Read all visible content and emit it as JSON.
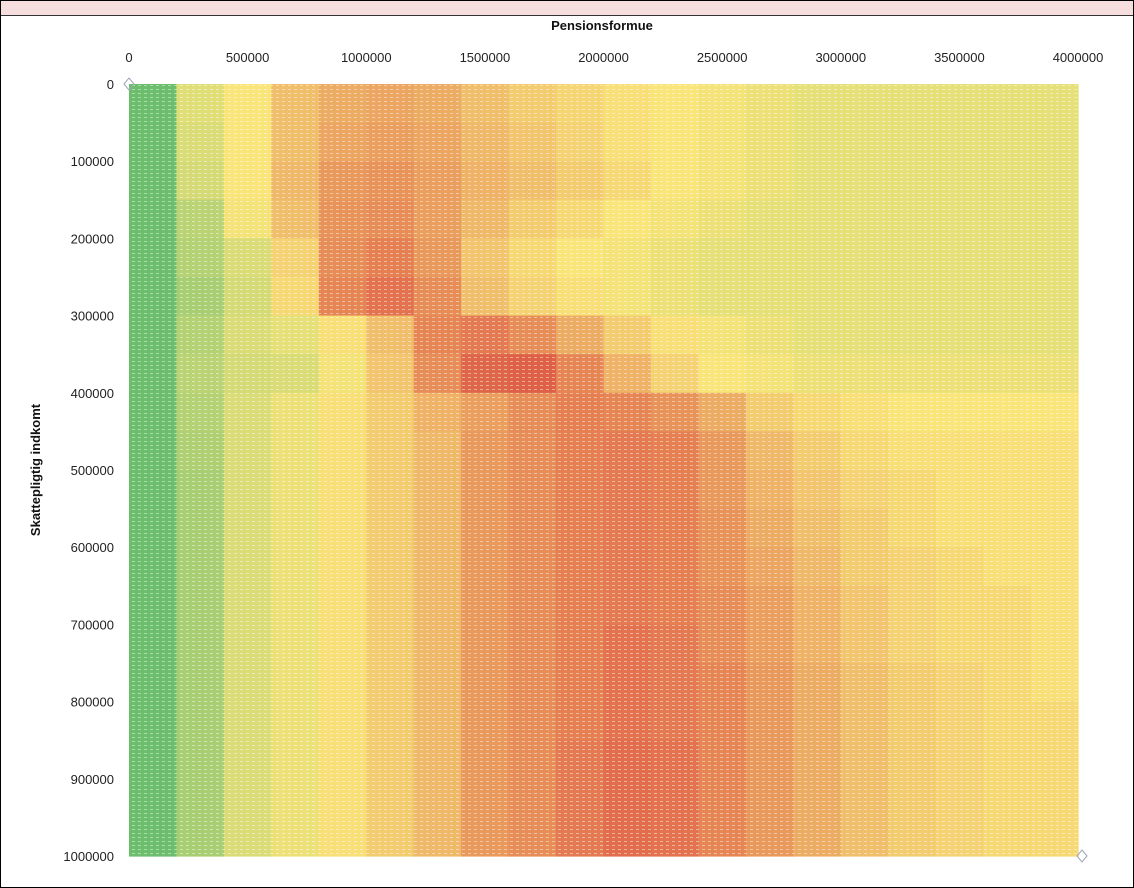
{
  "chart_data": {
    "type": "heatmap",
    "title": "",
    "xlabel": "Pensionsformue",
    "ylabel": "Skattepligtig indkomt",
    "x_axis_position": "top",
    "xlim": [
      0,
      4000000
    ],
    "ylim": [
      0,
      1000000
    ],
    "y_reversed": true,
    "xticks": [
      0,
      500000,
      1000000,
      1500000,
      2000000,
      2500000,
      3000000,
      3500000,
      4000000
    ],
    "xtick_labels": [
      "0",
      "500000",
      "1000000",
      "1500000",
      "2000000",
      "2500000",
      "3000000",
      "3500000",
      "4000000"
    ],
    "yticks": [
      0,
      100000,
      200000,
      300000,
      400000,
      500000,
      600000,
      700000,
      800000,
      900000,
      1000000
    ],
    "ytick_labels": [
      "0",
      "100000",
      "200000",
      "300000",
      "400000",
      "500000",
      "600000",
      "700000",
      "800000",
      "900000",
      "1000000"
    ],
    "color_scale": {
      "low": "#5cb86a",
      "mid": "#f9e57a",
      "high": "#d9473d"
    },
    "grid": false,
    "legend": "none",
    "x": [
      100000,
      300000,
      500000,
      700000,
      900000,
      1100000,
      1300000,
      1500000,
      1700000,
      1900000,
      2100000,
      2300000,
      2500000,
      2700000,
      2900000,
      3100000,
      3300000,
      3500000,
      3700000,
      3900000
    ],
    "y": [
      25000,
      75000,
      125000,
      175000,
      225000,
      275000,
      325000,
      375000,
      425000,
      475000,
      525000,
      575000,
      625000,
      675000,
      725000,
      775000,
      825000,
      875000,
      925000,
      975000
    ],
    "z": [
      [
        0.05,
        0.42,
        0.5,
        0.62,
        0.68,
        0.7,
        0.68,
        0.62,
        0.58,
        0.55,
        0.52,
        0.5,
        0.48,
        0.46,
        0.44,
        0.44,
        0.44,
        0.44,
        0.44,
        0.44
      ],
      [
        0.05,
        0.4,
        0.5,
        0.62,
        0.7,
        0.72,
        0.7,
        0.64,
        0.6,
        0.56,
        0.52,
        0.5,
        0.48,
        0.46,
        0.44,
        0.44,
        0.44,
        0.44,
        0.44,
        0.44
      ],
      [
        0.05,
        0.38,
        0.5,
        0.64,
        0.74,
        0.76,
        0.72,
        0.66,
        0.62,
        0.58,
        0.54,
        0.5,
        0.48,
        0.46,
        0.44,
        0.44,
        0.44,
        0.44,
        0.44,
        0.44
      ],
      [
        0.05,
        0.3,
        0.48,
        0.62,
        0.76,
        0.78,
        0.72,
        0.64,
        0.58,
        0.54,
        0.5,
        0.48,
        0.46,
        0.44,
        0.44,
        0.44,
        0.44,
        0.44,
        0.44,
        0.44
      ],
      [
        0.05,
        0.28,
        0.4,
        0.56,
        0.78,
        0.82,
        0.74,
        0.6,
        0.54,
        0.5,
        0.48,
        0.46,
        0.44,
        0.44,
        0.44,
        0.44,
        0.44,
        0.44,
        0.44,
        0.44
      ],
      [
        0.05,
        0.24,
        0.38,
        0.54,
        0.8,
        0.86,
        0.78,
        0.62,
        0.56,
        0.52,
        0.48,
        0.46,
        0.44,
        0.44,
        0.44,
        0.44,
        0.44,
        0.44,
        0.44,
        0.44
      ],
      [
        0.05,
        0.28,
        0.4,
        0.44,
        0.52,
        0.62,
        0.8,
        0.84,
        0.78,
        0.68,
        0.58,
        0.52,
        0.48,
        0.46,
        0.44,
        0.44,
        0.44,
        0.44,
        0.44,
        0.44
      ],
      [
        0.05,
        0.3,
        0.38,
        0.4,
        0.48,
        0.6,
        0.78,
        0.9,
        0.92,
        0.8,
        0.66,
        0.56,
        0.5,
        0.48,
        0.46,
        0.46,
        0.46,
        0.46,
        0.46,
        0.46
      ],
      [
        0.05,
        0.28,
        0.4,
        0.46,
        0.52,
        0.58,
        0.66,
        0.72,
        0.78,
        0.82,
        0.8,
        0.76,
        0.68,
        0.58,
        0.54,
        0.52,
        0.5,
        0.5,
        0.5,
        0.5
      ],
      [
        0.05,
        0.26,
        0.4,
        0.46,
        0.52,
        0.58,
        0.64,
        0.74,
        0.78,
        0.82,
        0.84,
        0.82,
        0.74,
        0.64,
        0.58,
        0.54,
        0.52,
        0.52,
        0.52,
        0.52
      ],
      [
        0.05,
        0.24,
        0.4,
        0.46,
        0.52,
        0.58,
        0.64,
        0.74,
        0.78,
        0.82,
        0.84,
        0.82,
        0.74,
        0.66,
        0.6,
        0.56,
        0.54,
        0.52,
        0.52,
        0.52
      ],
      [
        0.05,
        0.24,
        0.4,
        0.46,
        0.52,
        0.58,
        0.64,
        0.74,
        0.78,
        0.82,
        0.84,
        0.82,
        0.76,
        0.68,
        0.62,
        0.58,
        0.54,
        0.52,
        0.52,
        0.52
      ],
      [
        0.05,
        0.24,
        0.4,
        0.46,
        0.52,
        0.58,
        0.64,
        0.74,
        0.78,
        0.82,
        0.84,
        0.82,
        0.76,
        0.7,
        0.64,
        0.58,
        0.56,
        0.54,
        0.52,
        0.52
      ],
      [
        0.05,
        0.24,
        0.4,
        0.46,
        0.52,
        0.58,
        0.64,
        0.74,
        0.78,
        0.82,
        0.84,
        0.82,
        0.78,
        0.72,
        0.66,
        0.6,
        0.56,
        0.54,
        0.54,
        0.52
      ],
      [
        0.05,
        0.24,
        0.4,
        0.46,
        0.52,
        0.58,
        0.64,
        0.74,
        0.78,
        0.82,
        0.86,
        0.84,
        0.78,
        0.72,
        0.66,
        0.6,
        0.56,
        0.54,
        0.54,
        0.52
      ],
      [
        0.05,
        0.24,
        0.4,
        0.46,
        0.52,
        0.58,
        0.64,
        0.74,
        0.78,
        0.82,
        0.86,
        0.84,
        0.8,
        0.74,
        0.68,
        0.62,
        0.58,
        0.56,
        0.54,
        0.52
      ],
      [
        0.05,
        0.24,
        0.4,
        0.46,
        0.52,
        0.58,
        0.64,
        0.74,
        0.78,
        0.82,
        0.86,
        0.84,
        0.8,
        0.74,
        0.68,
        0.62,
        0.58,
        0.56,
        0.54,
        0.54
      ],
      [
        0.05,
        0.24,
        0.4,
        0.46,
        0.52,
        0.58,
        0.64,
        0.74,
        0.78,
        0.84,
        0.88,
        0.86,
        0.8,
        0.74,
        0.68,
        0.62,
        0.58,
        0.56,
        0.54,
        0.54
      ],
      [
        0.05,
        0.24,
        0.4,
        0.46,
        0.52,
        0.58,
        0.64,
        0.74,
        0.78,
        0.84,
        0.88,
        0.86,
        0.8,
        0.74,
        0.68,
        0.62,
        0.58,
        0.56,
        0.54,
        0.54
      ],
      [
        0.05,
        0.24,
        0.4,
        0.46,
        0.52,
        0.58,
        0.64,
        0.74,
        0.78,
        0.84,
        0.88,
        0.86,
        0.8,
        0.74,
        0.68,
        0.62,
        0.58,
        0.56,
        0.54,
        0.54
      ]
    ]
  }
}
